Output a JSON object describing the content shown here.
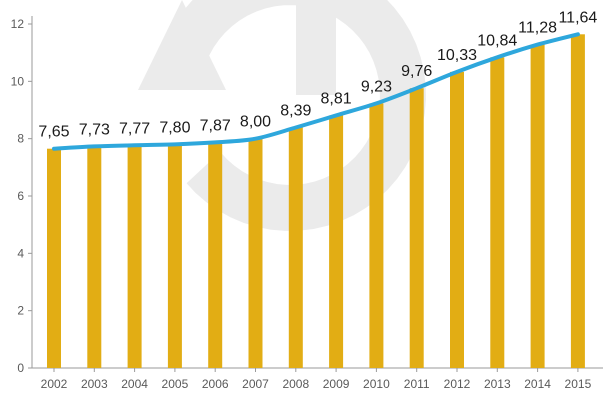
{
  "chart_data": {
    "type": "bar",
    "title": "",
    "xlabel": "",
    "ylabel": "",
    "ylim": [
      0,
      12
    ],
    "yticks": [
      0,
      2,
      4,
      6,
      8,
      10,
      12
    ],
    "grid": false,
    "categories": [
      "2002",
      "2003",
      "2004",
      "2005",
      "2006",
      "2007",
      "2008",
      "2009",
      "2010",
      "2011",
      "2012",
      "2013",
      "2014",
      "2015"
    ],
    "series": [
      {
        "name": "bars",
        "kind": "bar",
        "values": [
          7.65,
          7.73,
          7.77,
          7.8,
          7.87,
          8.0,
          8.39,
          8.81,
          9.23,
          9.76,
          10.33,
          10.84,
          11.28,
          11.64
        ]
      },
      {
        "name": "line",
        "kind": "line",
        "values": [
          7.65,
          7.73,
          7.77,
          7.8,
          7.87,
          8.0,
          8.39,
          8.81,
          9.23,
          9.76,
          10.33,
          10.84,
          11.28,
          11.64
        ]
      }
    ],
    "data_labels": [
      "7,65",
      "7,73",
      "7,77",
      "7,80",
      "7,87",
      "8,00",
      "8,39",
      "8,81",
      "9,23",
      "9,76",
      "10,33",
      "10,84",
      "11,28",
      "11,64"
    ],
    "colors": {
      "bar": "#E2AD14",
      "line": "#2EA7DC",
      "axis": "#9a9a9a",
      "watermark": "#EBEBEB"
    }
  },
  "watermark": {
    "icon": "circular-arrow-icon"
  }
}
